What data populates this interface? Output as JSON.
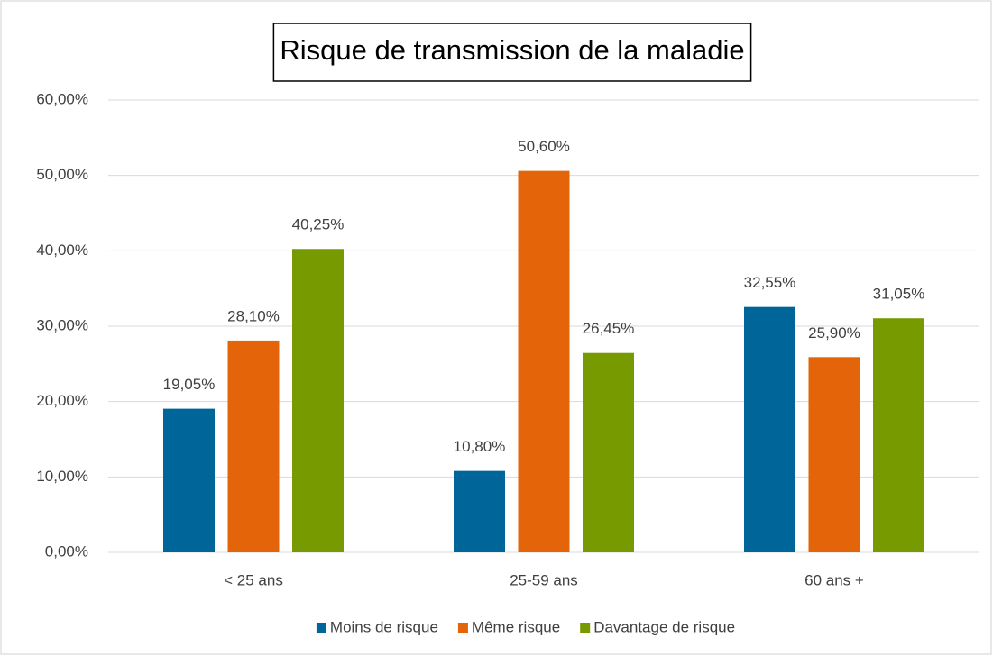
{
  "chart_data": {
    "type": "bar",
    "title": "Risque de transmission de la maladie",
    "categories": [
      "< 25 ans",
      "25-59 ans",
      "60 ans +"
    ],
    "series": [
      {
        "name": "Moins de risque",
        "color": "#00669a",
        "values": [
          19.05,
          10.8,
          32.55
        ],
        "value_labels": [
          "19,05%",
          "10,80%",
          "32,55%"
        ]
      },
      {
        "name": "Même risque",
        "color": "#e36409",
        "values": [
          28.1,
          50.6,
          25.9
        ],
        "value_labels": [
          "28,10%",
          "50,60%",
          "25,90%"
        ]
      },
      {
        "name": "Davantage de risque",
        "color": "#779a00",
        "values": [
          40.25,
          26.45,
          31.05
        ],
        "value_labels": [
          "40,25%",
          "26,45%",
          "31,05%"
        ]
      }
    ],
    "ylim": [
      0,
      60
    ],
    "yticks": [
      {
        "value": 0,
        "label": "0,00%"
      },
      {
        "value": 10,
        "label": "10,00%"
      },
      {
        "value": 20,
        "label": "20,00%"
      },
      {
        "value": 30,
        "label": "30,00%"
      },
      {
        "value": 40,
        "label": "40,00%"
      },
      {
        "value": 50,
        "label": "50,00%"
      },
      {
        "value": 60,
        "label": "60,00%"
      }
    ],
    "grid": true,
    "legend": "bottom"
  }
}
